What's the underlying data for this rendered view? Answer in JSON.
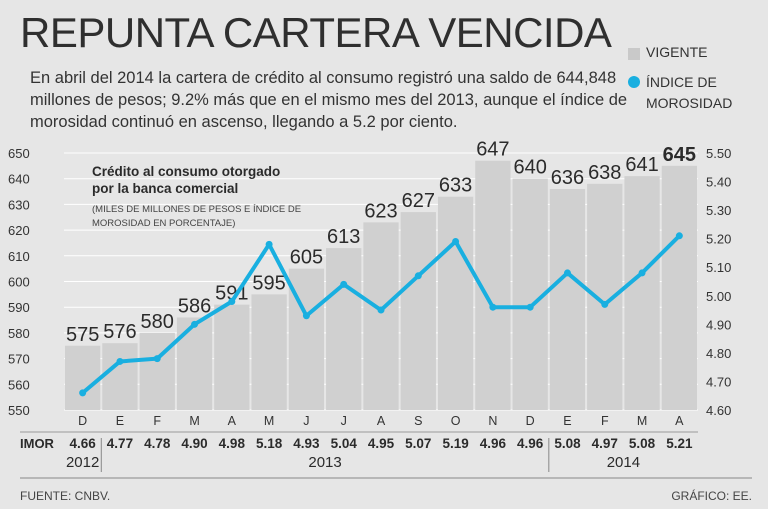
{
  "header": {
    "title": "REPUNTA CARTERA VENCIDA",
    "intro": "En abril del 2014 la cartera de crédito al consumo registró una saldo de 644,848 millones de pesos; 9.2% más que en el mismo mes del 2013, aunque el índice de morosidad continuó en ascenso, llegando a 5.2 por ciento."
  },
  "legend": {
    "vigente": "VIGENTE",
    "morosidad": "ÍNDICE DE MOROSIDAD"
  },
  "colors": {
    "bar": "#d0d0d0",
    "line": "#19afe0",
    "gridline": "#ffffff",
    "text": "#2b2b2b"
  },
  "chart_data": {
    "type": "bar+line",
    "title": "Crédito al consumo otorgado por la banca comercial",
    "subtitle": "(MILES DE MILLONES DE PESOS E ÍNDICE DE MOROSIDAD EN PORCENTAJE)",
    "categories": [
      "D",
      "E",
      "F",
      "M",
      "A",
      "M",
      "J",
      "J",
      "A",
      "S",
      "O",
      "N",
      "D",
      "E",
      "F",
      "M",
      "A"
    ],
    "years": [
      {
        "label": "2012",
        "start": 0,
        "end": 0
      },
      {
        "label": "2013",
        "start": 1,
        "end": 12
      },
      {
        "label": "2014",
        "start": 13,
        "end": 16
      }
    ],
    "bars": {
      "name": "VIGENTE",
      "values": [
        575,
        576,
        580,
        586,
        591,
        595,
        605,
        613,
        623,
        627,
        633,
        647,
        640,
        636,
        638,
        641,
        645
      ],
      "labels": [
        "575",
        "576",
        "580",
        "586",
        "591",
        "595",
        "605",
        "613",
        "623",
        "627",
        "633",
        "647",
        "640",
        "636",
        "638",
        "641",
        "645"
      ],
      "bold_last": true
    },
    "line": {
      "name": "ÍNDICE DE MOROSIDAD",
      "row_label": "IMOR",
      "values": [
        4.66,
        4.77,
        4.78,
        4.9,
        4.98,
        5.18,
        4.93,
        5.04,
        4.95,
        5.07,
        5.19,
        4.96,
        4.96,
        5.08,
        4.97,
        5.08,
        5.21
      ],
      "labels": [
        "4.66",
        "4.77",
        "4.78",
        "4.90",
        "4.98",
        "5.18",
        "4.93",
        "5.04",
        "4.95",
        "5.07",
        "5.19",
        "4.96",
        "4.96",
        "5.08",
        "4.97",
        "5.08",
        "5.21"
      ]
    },
    "left_axis": {
      "min": 550,
      "max": 650,
      "step": 10,
      "ticks": [
        "550",
        "560",
        "570",
        "580",
        "590",
        "600",
        "610",
        "620",
        "630",
        "640",
        "650"
      ]
    },
    "right_axis": {
      "min": 4.6,
      "max": 5.5,
      "step": 0.1,
      "ticks": [
        "4.60",
        "4.70",
        "4.80",
        "4.90",
        "5.00",
        "5.10",
        "5.20",
        "5.30",
        "5.40",
        "5.50"
      ]
    }
  },
  "footer": {
    "source": "FUENTE: CNBV.",
    "credit": "GRÁFICO: EE."
  }
}
